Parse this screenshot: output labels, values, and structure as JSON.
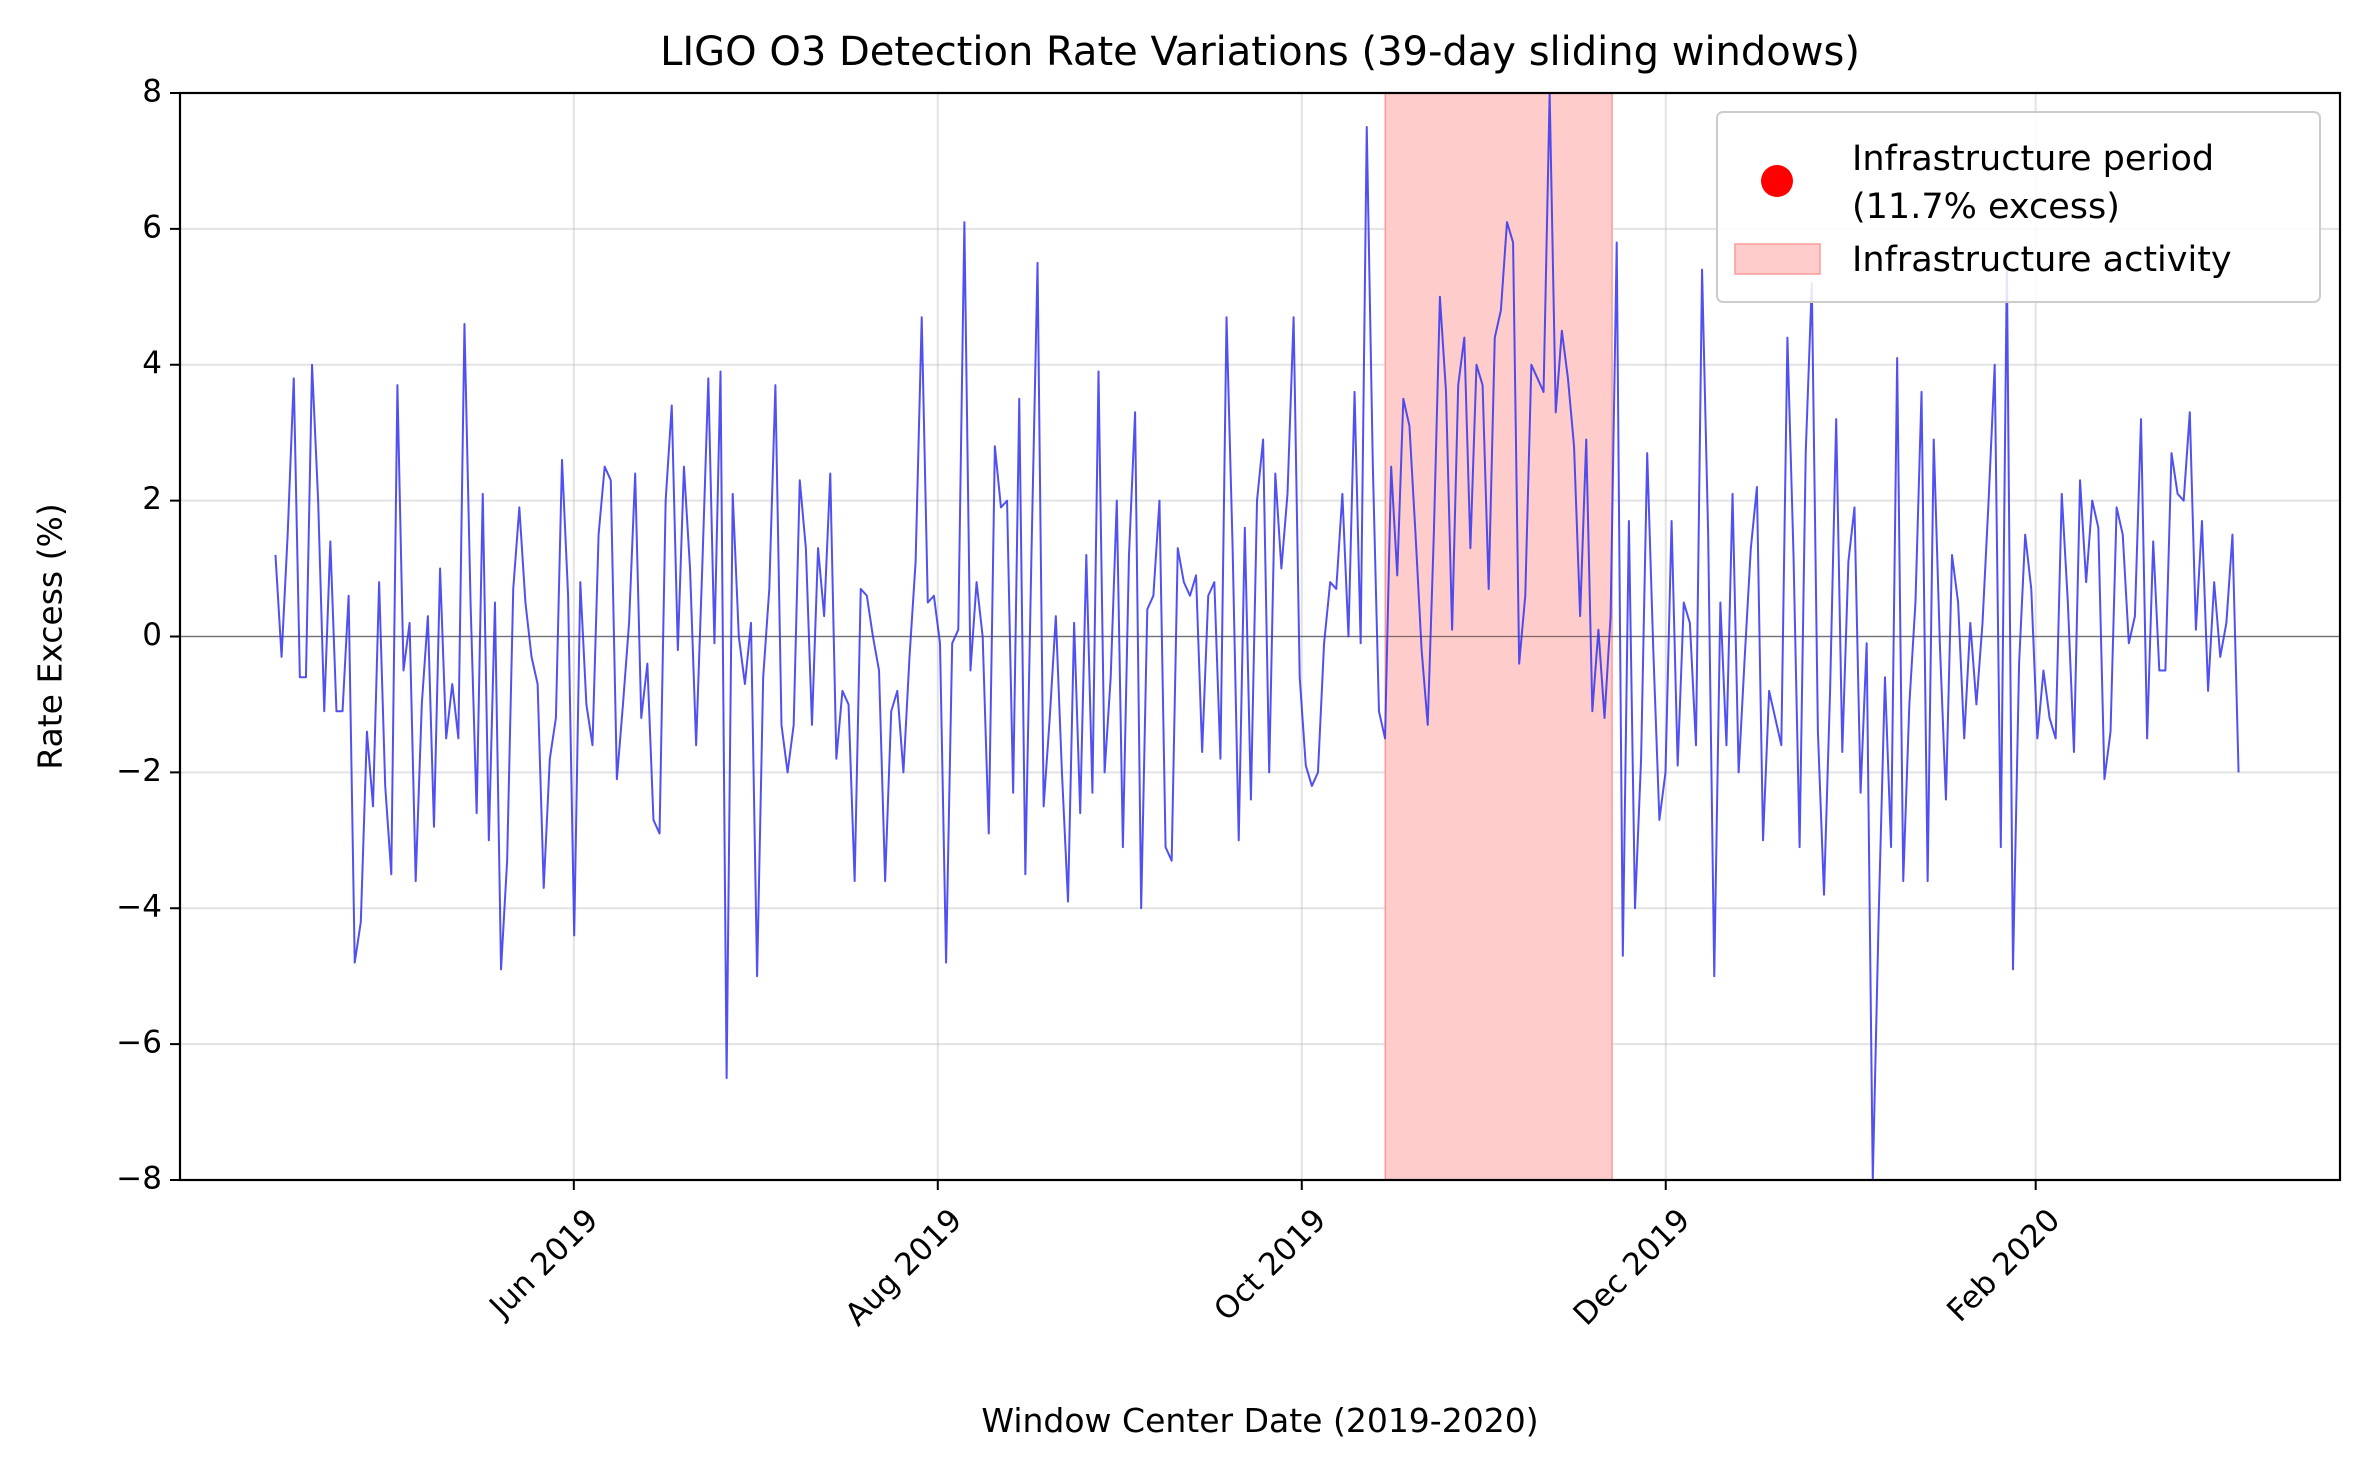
{
  "chart_data": {
    "type": "line",
    "title": "LIGO O3 Detection Rate Variations (39-day sliding windows)",
    "xlabel": "Window Center Date (2019-2020)",
    "ylabel": "Rate Excess (%)",
    "ylim": [
      -8,
      8
    ],
    "xlim": [
      "2019-03-27",
      "2020-03-23"
    ],
    "grid": true,
    "legend_position": "top-right",
    "x_ticks": [
      {
        "date": "2019-06-01",
        "label": "Jun 2019"
      },
      {
        "date": "2019-08-01",
        "label": "Aug 2019"
      },
      {
        "date": "2019-10-01",
        "label": "Oct 2019"
      },
      {
        "date": "2019-12-01",
        "label": "Dec 2019"
      },
      {
        "date": "2020-02-01",
        "label": "Feb 2020"
      }
    ],
    "y_ticks": [
      {
        "value": 8,
        "label": "8"
      },
      {
        "value": 6,
        "label": "6"
      },
      {
        "value": 4,
        "label": "4"
      },
      {
        "value": 2,
        "label": "2"
      },
      {
        "value": 0,
        "label": "0"
      },
      {
        "value": -2,
        "label": "−2"
      },
      {
        "value": -4,
        "label": "−4"
      },
      {
        "value": -6,
        "label": "−6"
      },
      {
        "value": -8,
        "label": "−8"
      }
    ],
    "series": [
      {
        "color": "#3333ee",
        "x_start": "2019-04-12",
        "x_end": "2020-03-06",
        "values": [
          1.2,
          -0.3,
          1.5,
          3.8,
          -0.6,
          -0.6,
          4.0,
          2.0,
          -1.1,
          1.4,
          -1.1,
          -1.1,
          0.6,
          -4.8,
          -4.2,
          -1.4,
          -2.5,
          0.8,
          -2.2,
          -3.5,
          3.7,
          -0.5,
          0.2,
          -3.6,
          -1.0,
          0.3,
          -2.8,
          1.0,
          -1.5,
          -0.7,
          -1.5,
          4.6,
          0.5,
          -2.6,
          2.1,
          -3.0,
          0.5,
          -4.9,
          -3.3,
          0.7,
          1.9,
          0.5,
          -0.3,
          -0.7,
          -3.7,
          -1.8,
          -1.2,
          2.6,
          0.6,
          -4.4,
          0.8,
          -1.0,
          -1.6,
          1.5,
          2.5,
          2.3,
          -2.1,
          -1.0,
          0.2,
          2.4,
          -1.2,
          -0.4,
          -2.7,
          -2.9,
          2.0,
          3.4,
          -0.2,
          2.5,
          1.0,
          -1.6,
          1.0,
          3.8,
          -0.1,
          3.9,
          -6.5,
          2.1,
          0.0,
          -0.7,
          0.2,
          -5.0,
          -0.6,
          0.7,
          3.7,
          -1.3,
          -2.0,
          -1.3,
          2.3,
          1.3,
          -1.3,
          1.3,
          0.3,
          2.4,
          -1.8,
          -0.8,
          -1.0,
          -3.6,
          0.7,
          0.6,
          0.0,
          -0.5,
          -3.6,
          -1.1,
          -0.8,
          -2.0,
          -0.3,
          1.1,
          4.7,
          0.5,
          0.6,
          -0.1,
          -4.8,
          -0.1,
          0.1,
          6.1,
          -0.5,
          0.8,
          0.0,
          -2.9,
          2.8,
          1.9,
          2.0,
          -2.3,
          3.5,
          -3.5,
          1.2,
          5.5,
          -2.5,
          -1.2,
          0.3,
          -2.0,
          -3.9,
          0.2,
          -2.6,
          1.2,
          -2.3,
          3.9,
          -2.0,
          -0.6,
          2.0,
          -3.1,
          1.2,
          3.3,
          -4.0,
          0.4,
          0.6,
          2.0,
          -3.1,
          -3.3,
          1.3,
          0.8,
          0.6,
          0.9,
          -1.7,
          0.6,
          0.8,
          -1.8,
          4.7,
          1.3,
          -3.0,
          1.6,
          -2.4,
          2.0,
          2.9,
          -2.0,
          2.4,
          1.0,
          2.1,
          4.7,
          -0.6,
          -1.9,
          -2.2,
          -2.0,
          -0.1,
          0.8,
          0.7,
          2.1,
          0.0,
          3.6,
          -0.1,
          7.5,
          2.5,
          -1.1,
          -1.5,
          2.5,
          0.9,
          3.5,
          3.1,
          1.5,
          -0.2,
          -1.3,
          1.5,
          5.0,
          3.6,
          0.1,
          3.7,
          4.4,
          1.3,
          4.0,
          3.7,
          0.7,
          4.4,
          4.8,
          6.1,
          5.8,
          -0.4,
          0.6,
          4.0,
          3.8,
          3.6,
          8.0,
          3.3,
          4.5,
          3.8,
          2.8,
          0.3,
          2.9,
          -1.1,
          0.1,
          -1.2,
          0.3,
          5.8,
          -4.7,
          1.7,
          -4.0,
          -1.8,
          2.7,
          -0.2,
          -2.7,
          -2.0,
          1.7,
          -1.9,
          0.5,
          0.2,
          -1.6,
          5.4,
          1.5,
          -5.0,
          0.5,
          -1.6,
          2.1,
          -2.0,
          -0.3,
          1.3,
          2.2,
          -3.0,
          -0.8,
          -1.2,
          -1.6,
          4.4,
          1.2,
          -3.1,
          2.7,
          5.2,
          -1.4,
          -3.8,
          -0.8,
          3.2,
          -1.7,
          1.1,
          1.9,
          -2.3,
          -0.1,
          -8.0,
          -4.0,
          -0.6,
          -3.1,
          4.1,
          -3.6,
          -1.0,
          0.5,
          3.6,
          -3.6,
          2.9,
          -0.1,
          -2.4,
          1.2,
          0.5,
          -1.5,
          0.2,
          -1.0,
          0.2,
          2.0,
          4.0,
          -3.1,
          5.5,
          -4.9,
          -0.4,
          1.5,
          0.7,
          -1.5,
          -0.5,
          -1.2,
          -1.5,
          2.1,
          0.5,
          -1.7,
          2.3,
          0.8,
          2.0,
          1.6,
          -2.1,
          -1.4,
          1.9,
          1.5,
          -0.1,
          0.3,
          3.2,
          -1.5,
          1.4,
          -0.5,
          -0.5,
          2.7,
          2.1,
          2.0,
          3.3,
          0.1,
          1.7,
          -0.8,
          0.8,
          -0.3,
          0.2,
          1.5,
          -2.0
        ]
      }
    ],
    "highlight_region": {
      "start": "2019-10-15",
      "end": "2019-11-22",
      "color": "#ffcccc"
    },
    "legend": [
      {
        "kind": "marker",
        "color": "#ff0000",
        "label_lines": [
          "Infrastructure period",
          "(11.7% excess)"
        ]
      },
      {
        "kind": "patch",
        "color": "#ffcccc",
        "label_lines": [
          "Infrastructure activity"
        ]
      }
    ]
  }
}
